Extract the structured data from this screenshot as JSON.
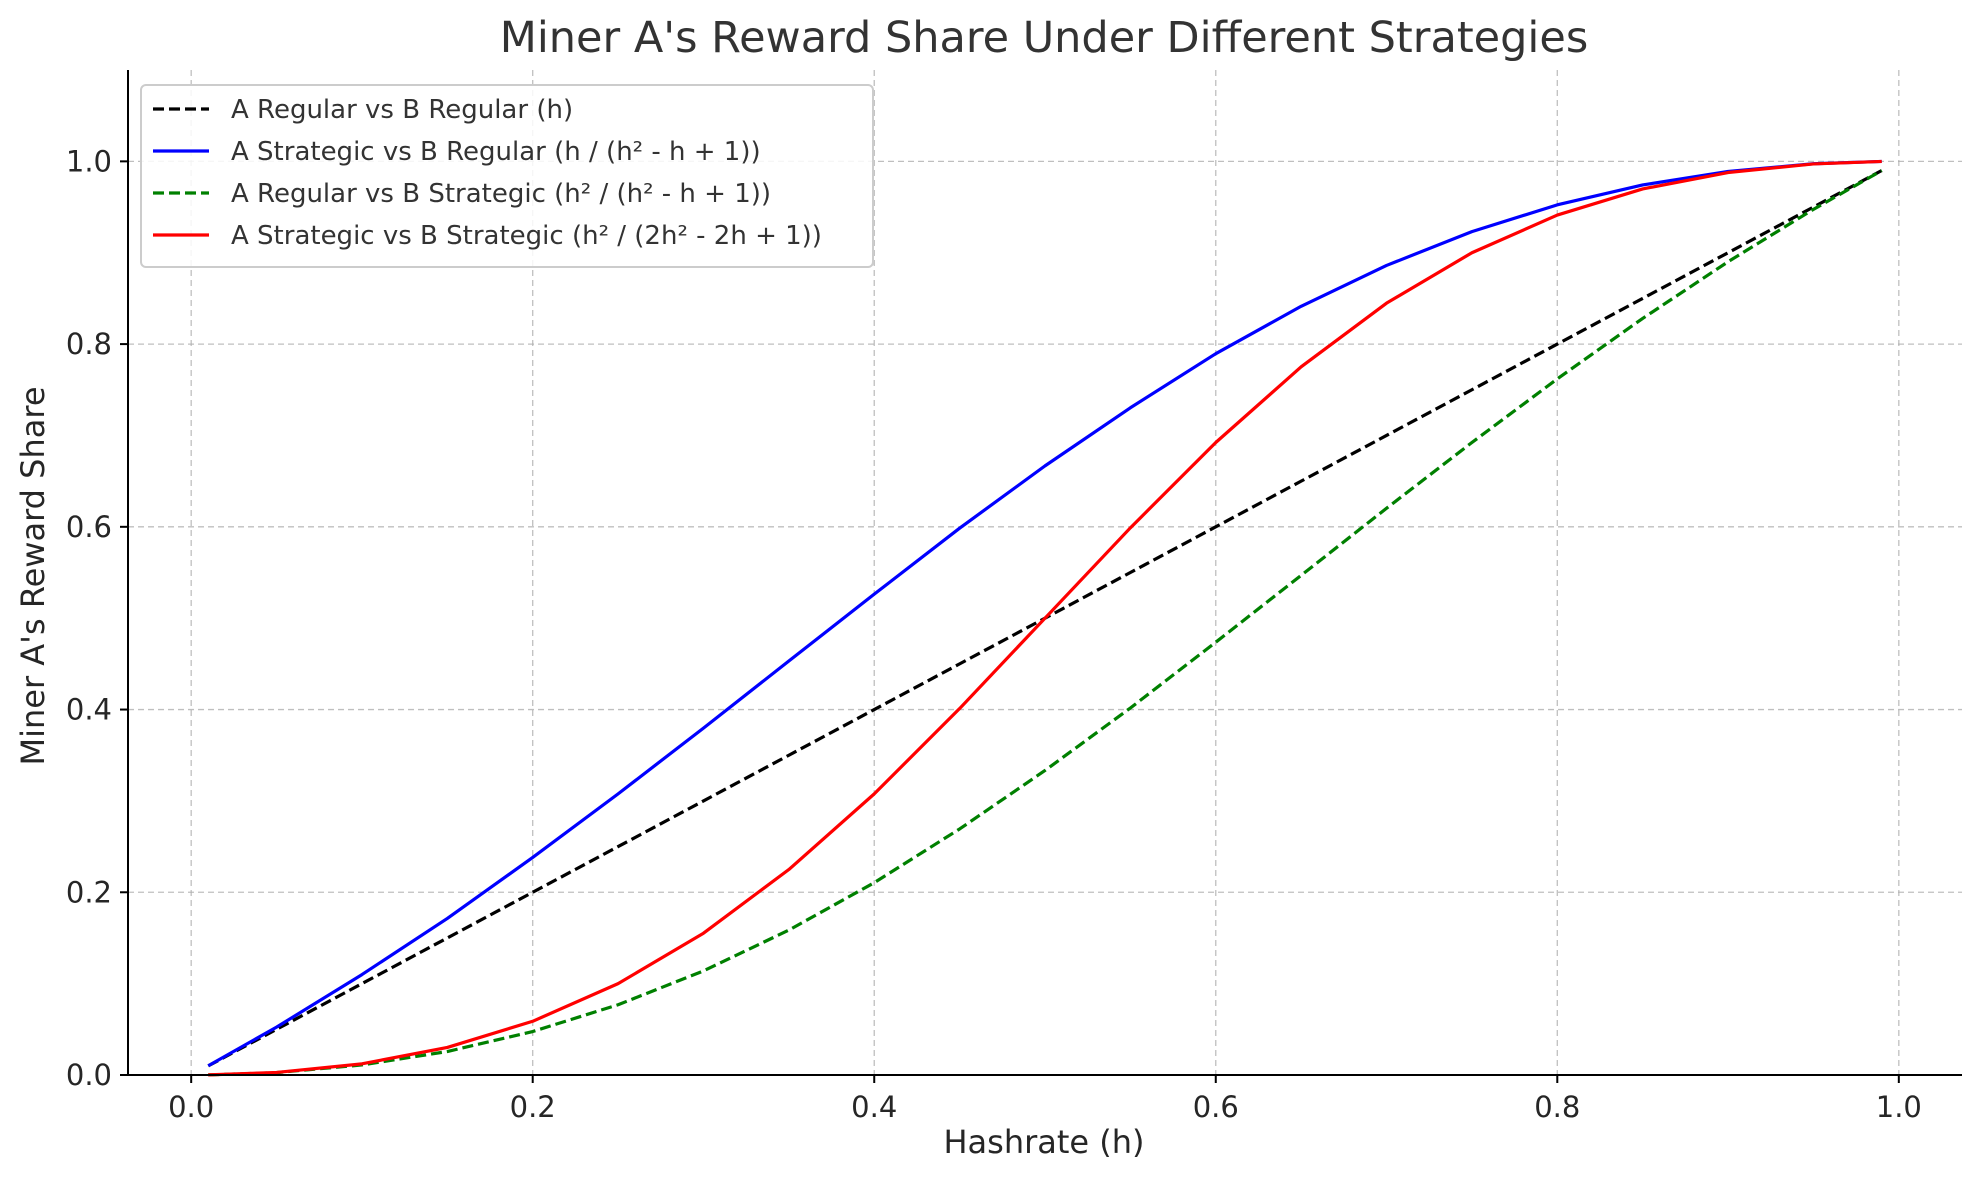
{
  "chart_data": {
    "type": "line",
    "title": "Miner A's Reward Share Under Different Strategies",
    "xlabel": "Hashrate (h)",
    "ylabel": "Miner A's Reward Share",
    "xlim": [
      -0.037,
      1.037
    ],
    "ylim": [
      0.0,
      1.1
    ],
    "xticks": [
      0.0,
      0.2,
      0.4,
      0.6,
      0.8,
      1.0
    ],
    "xtick_labels": [
      "0.0",
      "0.2",
      "0.4",
      "0.6",
      "0.8",
      "1.0"
    ],
    "yticks": [
      0.0,
      0.2,
      0.4,
      0.6,
      0.8,
      1.0
    ],
    "ytick_labels": [
      "0.0",
      "0.2",
      "0.4",
      "0.6",
      "0.8",
      "1.0"
    ],
    "grid": true,
    "legend_position": "top-left",
    "x": [
      0.01,
      0.05,
      0.1,
      0.15,
      0.2,
      0.25,
      0.3,
      0.35,
      0.4,
      0.45,
      0.5,
      0.55,
      0.6,
      0.65,
      0.7,
      0.75,
      0.8,
      0.85,
      0.9,
      0.95,
      0.99
    ],
    "series": [
      {
        "name": "A Regular vs B Regular (h)",
        "color": "#000000",
        "dash": "dashed",
        "values": [
          0.01,
          0.05,
          0.1,
          0.15,
          0.2,
          0.25,
          0.3,
          0.35,
          0.4,
          0.45,
          0.5,
          0.55,
          0.6,
          0.65,
          0.7,
          0.75,
          0.8,
          0.85,
          0.9,
          0.95,
          0.99
        ]
      },
      {
        "name": "A Strategic vs B Regular (h / (h² - h + 1))",
        "color": "#0000ff",
        "dash": "solid",
        "values": [
          0.0101,
          0.0524,
          0.1099,
          0.1714,
          0.2381,
          0.3077,
          0.3797,
          0.4531,
          0.5263,
          0.5985,
          0.6667,
          0.7303,
          0.7895,
          0.8414,
          0.8861,
          0.9231,
          0.9524,
          0.9742,
          0.989,
          0.9974,
          0.9999
        ]
      },
      {
        "name": "A Regular vs B Strategic (h² / (h² - h + 1))",
        "color": "#008000",
        "dash": "dashed",
        "values": [
          0.0001,
          0.0026,
          0.011,
          0.0257,
          0.0476,
          0.0769,
          0.1139,
          0.1586,
          0.2105,
          0.2693,
          0.3333,
          0.4017,
          0.4737,
          0.5469,
          0.6203,
          0.6923,
          0.7619,
          0.8281,
          0.8901,
          0.9475,
          0.9899
        ]
      },
      {
        "name": "A Strategic vs B Strategic (h² / (2h² - 2h + 1))",
        "color": "#ff0000",
        "dash": "solid",
        "values": [
          0.0001,
          0.0028,
          0.0122,
          0.0302,
          0.0588,
          0.1,
          0.1552,
          0.2249,
          0.3077,
          0.4011,
          0.5,
          0.5989,
          0.6923,
          0.7751,
          0.8448,
          0.9,
          0.9412,
          0.9698,
          0.9878,
          0.9972,
          0.9999
        ]
      }
    ]
  }
}
